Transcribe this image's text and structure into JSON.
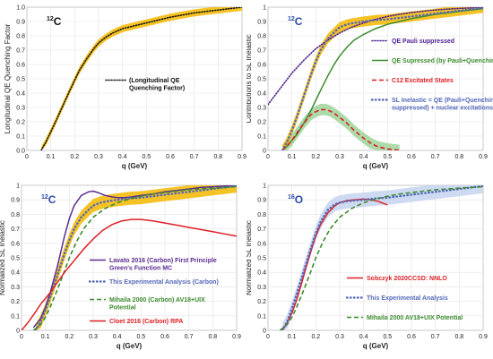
{
  "chart_data": [
    {
      "type": "line",
      "panel_label_mass": "12",
      "panel_label_element": "C",
      "xlabel": "q (GeV)",
      "ylabel": "Longitudinal QE Quenching Factor",
      "xlim": [
        0,
        0.9
      ],
      "ylim": [
        0,
        1.0
      ],
      "xticks": [
        "0",
        "0.1",
        "0.2",
        "0.3",
        "0.4",
        "0.5",
        "0.6",
        "0.7",
        "0.8",
        "0.9"
      ],
      "yticks": [
        "0.0",
        "0.1",
        "0.2",
        "0.3",
        "0.4",
        "0.5",
        "0.6",
        "0.7",
        "0.8",
        "0.9",
        "1.0"
      ],
      "grid": true,
      "legend_position": "center-right",
      "band_color": "#f5b800",
      "series": [
        {
          "name": "(Longitudinal  QE\nQuenching Factor)",
          "style": "dotted",
          "color": "#111111",
          "x": [
            0.06,
            0.08,
            0.1,
            0.12,
            0.15,
            0.18,
            0.2,
            0.22,
            0.25,
            0.28,
            0.3,
            0.33,
            0.36,
            0.4,
            0.45,
            0.5,
            0.55,
            0.6,
            0.65,
            0.7,
            0.75,
            0.8,
            0.85,
            0.9
          ],
          "y": [
            0.0,
            0.06,
            0.13,
            0.2,
            0.31,
            0.42,
            0.49,
            0.56,
            0.64,
            0.71,
            0.75,
            0.79,
            0.82,
            0.85,
            0.87,
            0.89,
            0.91,
            0.93,
            0.945,
            0.96,
            0.97,
            0.98,
            0.99,
            1.0
          ],
          "band": 0.025
        }
      ]
    },
    {
      "type": "line",
      "panel_label_mass": "12",
      "panel_label_element": "C",
      "xlabel": "q (GeV)",
      "ylabel": "Contributions to SL Inelastic",
      "xlim": [
        0,
        0.9
      ],
      "ylim": [
        0,
        1.0
      ],
      "xticks": [
        "0",
        "0.1",
        "0.2",
        "0.3",
        "0.4",
        "0.5",
        "0.6",
        "0.7",
        "0.8",
        "0.9"
      ],
      "yticks": [
        "0",
        "0.1",
        "0.2",
        "0.3",
        "0.4",
        "0.5",
        "0.6",
        "0.7",
        "0.8",
        "0.9",
        "1"
      ],
      "grid": true,
      "legend_position": "right",
      "series": [
        {
          "name": "QE Pauli suppressed",
          "style": "dotted",
          "color": "#4b1d8f",
          "x": [
            0.0,
            0.05,
            0.1,
            0.15,
            0.2,
            0.25,
            0.3,
            0.35,
            0.4,
            0.45,
            0.5,
            0.55,
            0.6,
            0.65,
            0.7,
            0.75,
            0.8,
            0.85,
            0.9
          ],
          "y": [
            0.32,
            0.43,
            0.54,
            0.63,
            0.71,
            0.77,
            0.82,
            0.86,
            0.89,
            0.915,
            0.935,
            0.95,
            0.962,
            0.972,
            0.98,
            0.986,
            0.991,
            0.995,
            0.998
          ]
        },
        {
          "name": "QE Supressed (by Pauli+Quenching).",
          "style": "solid",
          "color": "#3c8c2e",
          "x": [
            0.06,
            0.08,
            0.1,
            0.12,
            0.15,
            0.18,
            0.2,
            0.22,
            0.25,
            0.28,
            0.3,
            0.33,
            0.36,
            0.4,
            0.45,
            0.5,
            0.55,
            0.6,
            0.7,
            0.8,
            0.9
          ],
          "y": [
            0.0,
            0.03,
            0.07,
            0.11,
            0.19,
            0.28,
            0.35,
            0.42,
            0.52,
            0.61,
            0.66,
            0.72,
            0.77,
            0.81,
            0.85,
            0.88,
            0.9,
            0.92,
            0.95,
            0.97,
            0.99
          ]
        },
        {
          "name": "C12 Excitated States",
          "style": "dashed",
          "color": "#dd1f26",
          "x": [
            0.06,
            0.08,
            0.1,
            0.12,
            0.15,
            0.18,
            0.2,
            0.22,
            0.24,
            0.26,
            0.28,
            0.3,
            0.33,
            0.36,
            0.4,
            0.43,
            0.46,
            0.5,
            0.55
          ],
          "y": [
            0.0,
            0.03,
            0.07,
            0.12,
            0.19,
            0.25,
            0.27,
            0.285,
            0.285,
            0.275,
            0.255,
            0.23,
            0.19,
            0.14,
            0.085,
            0.05,
            0.025,
            0.01,
            0.0
          ],
          "band": 0.04,
          "band_color": "#9fd49a"
        },
        {
          "name": "SL Inelastic = QE (Pauli+Quenching\nsuppressed) + nuclear excitations",
          "style": "dotted-heavy",
          "color": "#5468b8",
          "x": [
            0.06,
            0.08,
            0.1,
            0.12,
            0.15,
            0.18,
            0.2,
            0.22,
            0.25,
            0.28,
            0.3,
            0.33,
            0.36,
            0.4,
            0.45,
            0.5,
            0.55,
            0.6,
            0.65,
            0.7,
            0.75,
            0.8,
            0.85,
            0.9
          ],
          "y": [
            0.0,
            0.06,
            0.14,
            0.23,
            0.38,
            0.53,
            0.62,
            0.7,
            0.78,
            0.83,
            0.86,
            0.88,
            0.89,
            0.9,
            0.91,
            0.915,
            0.925,
            0.935,
            0.945,
            0.955,
            0.965,
            0.975,
            0.985,
            0.995
          ],
          "band": 0.035,
          "band_color": "#f5b800"
        }
      ]
    },
    {
      "type": "line",
      "panel_label_mass": "12",
      "panel_label_element": "C",
      "xlabel": "q  (GeV)",
      "ylabel": "Normalized SL Inelastic",
      "xlim": [
        0,
        0.9
      ],
      "ylim": [
        0,
        1.0
      ],
      "xticks": [
        "0",
        "0.1",
        "0.2",
        "0.3",
        "0.4",
        "0.5",
        "0.6",
        "0.7",
        "0.8",
        "0.9"
      ],
      "yticks": [
        "0",
        "0.1",
        "0.2",
        "0.3",
        "0.4",
        "0.5",
        "0.6",
        "0.7",
        "0.8",
        "0.9",
        "1"
      ],
      "grid": true,
      "legend_position": "bottom-right",
      "series": [
        {
          "name": "Lavato 2016 (Carbon) First Principle\nGreen's Function MC",
          "style": "solid",
          "color": "#5b2c91",
          "x": [
            0.05,
            0.08,
            0.1,
            0.12,
            0.15,
            0.18,
            0.2,
            0.22,
            0.25,
            0.28,
            0.3,
            0.32,
            0.35,
            0.38,
            0.4,
            0.43,
            0.46,
            0.5,
            0.55,
            0.6,
            0.65,
            0.7,
            0.75,
            0.8,
            0.85,
            0.9
          ],
          "y": [
            0.02,
            0.08,
            0.16,
            0.26,
            0.44,
            0.65,
            0.77,
            0.86,
            0.93,
            0.955,
            0.96,
            0.95,
            0.93,
            0.92,
            0.915,
            0.915,
            0.92,
            0.93,
            0.94,
            0.955,
            0.965,
            0.975,
            0.985,
            0.99,
            0.995,
            1.0
          ]
        },
        {
          "name": "This Experimental Analysis (Carbon)",
          "style": "dotted-heavy",
          "color": "#5468b8",
          "x": [
            0.06,
            0.08,
            0.1,
            0.12,
            0.15,
            0.18,
            0.2,
            0.22,
            0.25,
            0.28,
            0.3,
            0.33,
            0.36,
            0.4,
            0.45,
            0.5,
            0.55,
            0.6,
            0.65,
            0.7,
            0.75,
            0.8,
            0.85,
            0.9
          ],
          "y": [
            0.0,
            0.06,
            0.14,
            0.23,
            0.38,
            0.53,
            0.62,
            0.7,
            0.78,
            0.83,
            0.86,
            0.88,
            0.89,
            0.9,
            0.91,
            0.915,
            0.925,
            0.935,
            0.945,
            0.955,
            0.965,
            0.975,
            0.985,
            0.995
          ],
          "band": 0.045,
          "band_color": "#f5b800"
        },
        {
          "name": "Mihaila 2000 (Carbon)  AV18+UIX\nPotential",
          "style": "dashed",
          "color": "#3c8c2e",
          "x": [
            0.05,
            0.08,
            0.1,
            0.12,
            0.15,
            0.18,
            0.2,
            0.23,
            0.26,
            0.3,
            0.35,
            0.4,
            0.45,
            0.5,
            0.55,
            0.6,
            0.65,
            0.7,
            0.75,
            0.8,
            0.85,
            0.9
          ],
          "y": [
            0.0,
            0.04,
            0.09,
            0.16,
            0.28,
            0.41,
            0.5,
            0.61,
            0.7,
            0.78,
            0.84,
            0.88,
            0.905,
            0.925,
            0.94,
            0.95,
            0.96,
            0.97,
            0.975,
            0.98,
            0.985,
            0.99
          ]
        },
        {
          "name": "Cloet 2016  (Carbon) RPA",
          "style": "solid",
          "color": "#dd1f26",
          "x": [
            0.0,
            0.03,
            0.06,
            0.08,
            0.1,
            0.12,
            0.15,
            0.18,
            0.2,
            0.23,
            0.26,
            0.3,
            0.34,
            0.38,
            0.42,
            0.46,
            0.5,
            0.55,
            0.6,
            0.65,
            0.7,
            0.75,
            0.8,
            0.85,
            0.9
          ],
          "y": [
            0.0,
            0.06,
            0.13,
            0.18,
            0.22,
            0.26,
            0.33,
            0.4,
            0.44,
            0.5,
            0.56,
            0.63,
            0.69,
            0.73,
            0.755,
            0.765,
            0.765,
            0.755,
            0.74,
            0.725,
            0.71,
            0.695,
            0.68,
            0.665,
            0.65
          ]
        }
      ]
    },
    {
      "type": "line",
      "panel_label_mass": "16",
      "panel_label_element": "O",
      "xlabel": "q  (GeV)",
      "ylabel": "Normalized SL Inelastic",
      "xlim": [
        0,
        0.9
      ],
      "ylim": [
        0,
        1.0
      ],
      "xticks": [
        "0",
        "0.1",
        "0.2",
        "0.3",
        "0.4",
        "0.5",
        "0.6",
        "0.7",
        "0.8",
        "0.9"
      ],
      "yticks": [
        "0",
        "0.1",
        "0.2",
        "0.3",
        "0.4",
        "0.5",
        "0.6",
        "0.7",
        "0.8",
        "0.9",
        "1"
      ],
      "grid": true,
      "legend_position": "bottom-right",
      "series": [
        {
          "name": "Sobczyk 2020CCSD: NNLO",
          "style": "solid",
          "color": "#dd1f26",
          "x": [
            0.06,
            0.08,
            0.1,
            0.12,
            0.14,
            0.16,
            0.18,
            0.2,
            0.22,
            0.25,
            0.28,
            0.3,
            0.33,
            0.36,
            0.4,
            0.43,
            0.46,
            0.5
          ],
          "y": [
            0.0,
            0.05,
            0.12,
            0.21,
            0.32,
            0.44,
            0.55,
            0.65,
            0.73,
            0.81,
            0.86,
            0.88,
            0.895,
            0.9,
            0.905,
            0.9,
            0.89,
            0.865
          ]
        },
        {
          "name": "This Experimental Analysis",
          "style": "dotted-heavy",
          "color": "#5468b8",
          "x": [
            0.06,
            0.08,
            0.1,
            0.12,
            0.15,
            0.18,
            0.2,
            0.22,
            0.25,
            0.28,
            0.3,
            0.33,
            0.36,
            0.4,
            0.45,
            0.5,
            0.55,
            0.6,
            0.65,
            0.7,
            0.75,
            0.8,
            0.85,
            0.9
          ],
          "y": [
            0.0,
            0.06,
            0.15,
            0.25,
            0.41,
            0.57,
            0.67,
            0.75,
            0.83,
            0.87,
            0.88,
            0.89,
            0.895,
            0.9,
            0.91,
            0.915,
            0.925,
            0.935,
            0.945,
            0.955,
            0.965,
            0.975,
            0.985,
            0.995
          ],
          "band": 0.05,
          "band_color": "#c5d3ee"
        },
        {
          "name": "Mihaila 2000 AV18+UIX Potential",
          "style": "dashed",
          "color": "#3c8c2e",
          "x": [
            0.05,
            0.08,
            0.1,
            0.12,
            0.15,
            0.18,
            0.2,
            0.23,
            0.26,
            0.3,
            0.35,
            0.4,
            0.45,
            0.5,
            0.55,
            0.6,
            0.65,
            0.7,
            0.75,
            0.8,
            0.85,
            0.9
          ],
          "y": [
            0.0,
            0.04,
            0.09,
            0.16,
            0.28,
            0.41,
            0.5,
            0.61,
            0.7,
            0.78,
            0.84,
            0.88,
            0.905,
            0.925,
            0.94,
            0.95,
            0.96,
            0.97,
            0.975,
            0.98,
            0.985,
            0.99
          ]
        }
      ]
    }
  ]
}
